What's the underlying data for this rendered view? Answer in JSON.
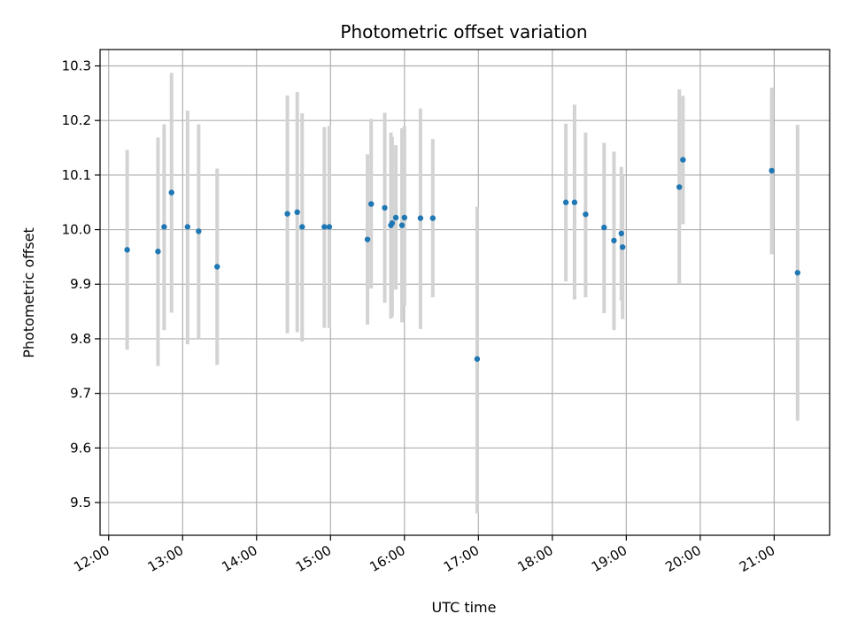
{
  "chart_data": {
    "type": "scatter",
    "title": "Photometric offset variation",
    "xlabel": "UTC time",
    "ylabel": "Photometric offset",
    "grid": true,
    "xlim": [
      "11:53",
      "21:45"
    ],
    "ylim": [
      9.44,
      10.33
    ],
    "x_ticks": [
      "12:00",
      "13:00",
      "14:00",
      "15:00",
      "16:00",
      "17:00",
      "18:00",
      "19:00",
      "20:00",
      "21:00"
    ],
    "y_ticks": [
      9.5,
      9.6,
      9.7,
      9.8,
      9.9,
      10.0,
      10.1,
      10.2,
      10.3
    ],
    "y_tick_labels": [
      "9.5",
      "9.6",
      "9.7",
      "9.8",
      "9.9",
      "10.0",
      "10.1",
      "10.2",
      "10.3"
    ],
    "series": [
      {
        "point_color": "#1f77b4",
        "errorbar_color": "#d3d3d3",
        "points": [
          {
            "x": "12:15",
            "y": 9.963,
            "low": 9.78,
            "high": 10.146
          },
          {
            "x": "12:40",
            "y": 9.96,
            "low": 9.75,
            "high": 10.169
          },
          {
            "x": "12:45",
            "y": 10.005,
            "low": 9.816,
            "high": 10.193
          },
          {
            "x": "12:51",
            "y": 10.068,
            "low": 9.848,
            "high": 10.287
          },
          {
            "x": "13:04",
            "y": 10.005,
            "low": 9.79,
            "high": 10.218
          },
          {
            "x": "13:13",
            "y": 9.997,
            "low": 9.8,
            "high": 10.193
          },
          {
            "x": "13:28",
            "y": 9.932,
            "low": 9.752,
            "high": 10.112
          },
          {
            "x": "14:25",
            "y": 10.029,
            "low": 9.81,
            "high": 10.246
          },
          {
            "x": "14:33",
            "y": 10.032,
            "low": 9.812,
            "high": 10.252
          },
          {
            "x": "14:37",
            "y": 10.005,
            "low": 9.795,
            "high": 10.213
          },
          {
            "x": "14:55",
            "y": 10.005,
            "low": 9.82,
            "high": 10.188
          },
          {
            "x": "14:59",
            "y": 10.005,
            "low": 9.82,
            "high": 10.19
          },
          {
            "x": "15:30",
            "y": 9.982,
            "low": 9.826,
            "high": 10.138
          },
          {
            "x": "15:33",
            "y": 10.047,
            "low": 9.892,
            "high": 10.203
          },
          {
            "x": "15:44",
            "y": 10.04,
            "low": 9.866,
            "high": 10.214
          },
          {
            "x": "15:49",
            "y": 10.008,
            "low": 9.837,
            "high": 10.178
          },
          {
            "x": "15:50",
            "y": 10.012,
            "low": 9.84,
            "high": 10.17
          },
          {
            "x": "15:53",
            "y": 10.022,
            "low": 9.89,
            "high": 10.155
          },
          {
            "x": "15:58",
            "y": 10.008,
            "low": 9.83,
            "high": 10.186
          },
          {
            "x": "16:00",
            "y": 10.022,
            "low": 9.86,
            "high": 10.19
          },
          {
            "x": "16:13",
            "y": 10.021,
            "low": 9.818,
            "high": 10.222
          },
          {
            "x": "16:23",
            "y": 10.021,
            "low": 9.876,
            "high": 10.166
          },
          {
            "x": "16:59",
            "y": 9.763,
            "low": 9.48,
            "high": 10.042
          },
          {
            "x": "18:11",
            "y": 10.05,
            "low": 9.905,
            "high": 10.194
          },
          {
            "x": "18:18",
            "y": 10.05,
            "low": 9.872,
            "high": 10.229
          },
          {
            "x": "18:27",
            "y": 10.028,
            "low": 9.876,
            "high": 10.178
          },
          {
            "x": "18:42",
            "y": 10.004,
            "low": 9.847,
            "high": 10.159
          },
          {
            "x": "18:50",
            "y": 9.98,
            "low": 9.816,
            "high": 10.143
          },
          {
            "x": "18:56",
            "y": 9.993,
            "low": 9.87,
            "high": 10.115
          },
          {
            "x": "18:57",
            "y": 9.968,
            "low": 9.836,
            "high": 10.1
          },
          {
            "x": "19:43",
            "y": 10.078,
            "low": 9.9,
            "high": 10.257
          },
          {
            "x": "19:46",
            "y": 10.128,
            "low": 10.01,
            "high": 10.245
          },
          {
            "x": "20:58",
            "y": 10.108,
            "low": 9.955,
            "high": 10.26
          },
          {
            "x": "21:19",
            "y": 9.921,
            "low": 9.65,
            "high": 10.192
          }
        ]
      }
    ]
  }
}
